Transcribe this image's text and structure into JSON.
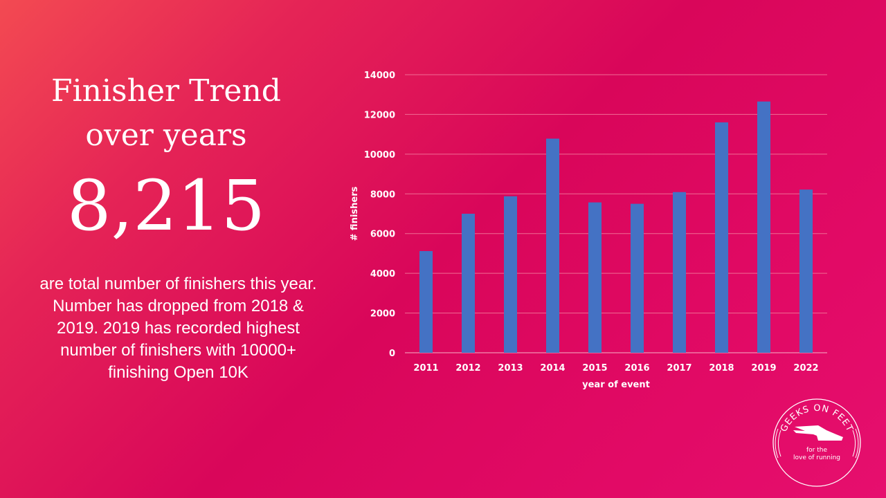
{
  "slide": {
    "title_line1": "Finisher Trend",
    "title_line2": "over years",
    "big_number": "8,215",
    "description": "are total number of finishers this year. Number has dropped from  2018 & 2019. 2019 has recorded highest number of finishers with 10000+ finishing Open 10K"
  },
  "logo": {
    "arc_text": "GEEKS ON FEET",
    "tagline1": "for the",
    "tagline2": "love of running"
  },
  "colors": {
    "bar": "#4472c4",
    "grid": "#f06c94",
    "text": "#ffffff"
  },
  "chart_data": {
    "type": "bar",
    "categories": [
      "2011",
      "2012",
      "2013",
      "2014",
      "2015",
      "2016",
      "2017",
      "2018",
      "2019",
      "2022"
    ],
    "values": [
      5120,
      7000,
      7880,
      10780,
      7570,
      7500,
      8090,
      11600,
      12650,
      8215
    ],
    "xlabel": "year of event",
    "ylabel": "# finishers",
    "ylim": [
      0,
      14000
    ],
    "yticks": [
      0,
      2000,
      4000,
      6000,
      8000,
      10000,
      12000,
      14000
    ],
    "grid": true,
    "legend": "none"
  }
}
